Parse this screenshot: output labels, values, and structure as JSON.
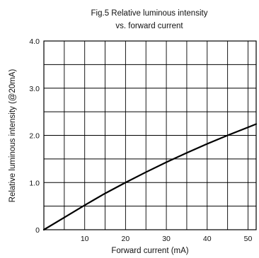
{
  "chart_data": {
    "type": "line",
    "title_line1": "Fig.5 Relative luminous intensity",
    "title_line2": "vs. forward current",
    "xlabel": "Forward current (mA)",
    "ylabel": "Relative luminous intensity (@20mA)",
    "xlim": [
      0,
      52
    ],
    "ylim": [
      0,
      4.0
    ],
    "x_ticks": [
      {
        "value": 10,
        "label": "10"
      },
      {
        "value": 20,
        "label": "20"
      },
      {
        "value": 30,
        "label": "30"
      },
      {
        "value": 40,
        "label": "40"
      },
      {
        "value": 50,
        "label": "50"
      }
    ],
    "y_ticks": [
      {
        "value": 0,
        "label": "0"
      },
      {
        "value": 1,
        "label": "1.0"
      },
      {
        "value": 2,
        "label": "2.0"
      },
      {
        "value": 3,
        "label": "3.0"
      },
      {
        "value": 4,
        "label": "4.0"
      }
    ],
    "x_grid": [
      5,
      10,
      15,
      20,
      25,
      30,
      35,
      40,
      45,
      50
    ],
    "y_grid": [
      0.5,
      1.0,
      1.5,
      2.0,
      2.5,
      3.0,
      3.5
    ],
    "grid": true,
    "series": [
      {
        "x": [
          0,
          5,
          10,
          15,
          20,
          25,
          30,
          35,
          40,
          45,
          50,
          52
        ],
        "y": [
          0,
          0.26,
          0.52,
          0.77,
          1.0,
          1.22,
          1.43,
          1.63,
          1.82,
          2.0,
          2.17,
          2.24
        ]
      }
    ]
  }
}
